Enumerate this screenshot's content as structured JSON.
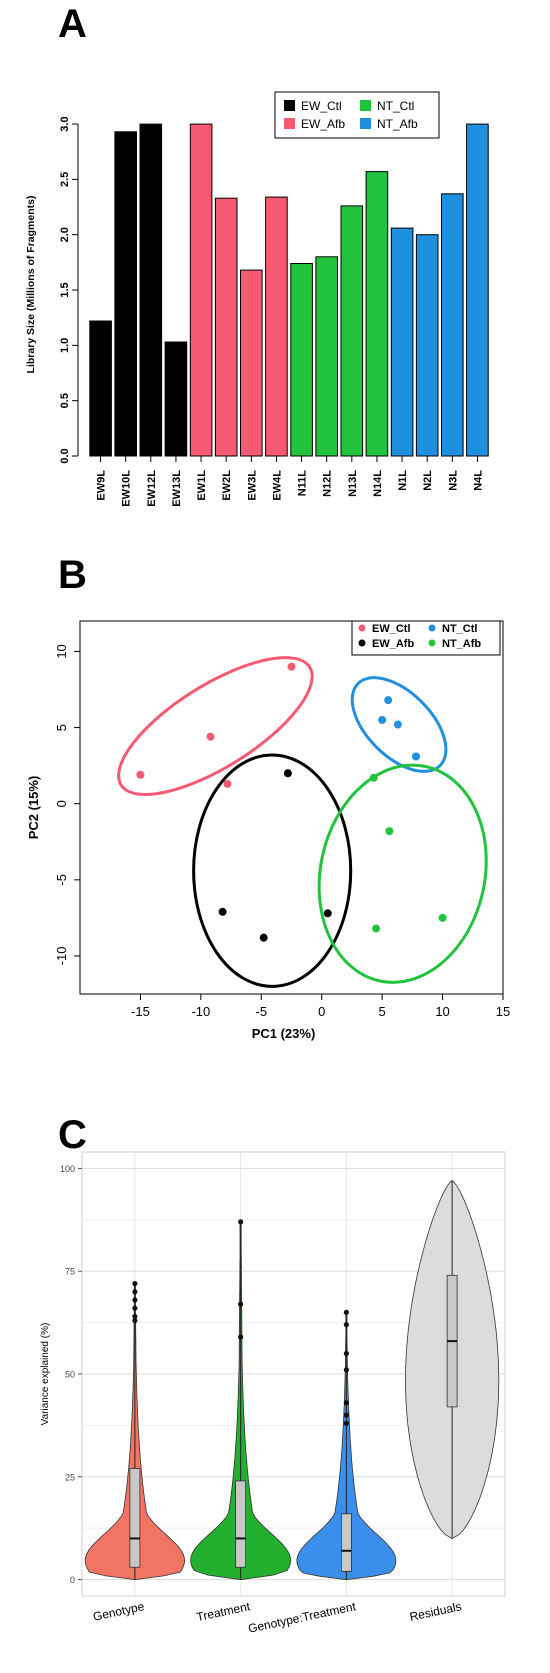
{
  "panels": {
    "a": "A",
    "b": "B",
    "c": "C"
  },
  "chart_data": [
    {
      "type": "bar",
      "ylabel": "Library Size (Millions of Fragments)",
      "ylim": [
        0,
        3.1
      ],
      "yticks": [
        "0.0",
        "0.5",
        "1.0",
        "1.5",
        "2.0",
        "2.5",
        "3.0"
      ],
      "categories": [
        "EW9L",
        "EW10L",
        "EW12L",
        "EW13L",
        "EW1L",
        "EW2L",
        "EW3L",
        "EW4L",
        "N11L",
        "N12L",
        "N13L",
        "N14L",
        "N1L",
        "N2L",
        "N3L",
        "N4L"
      ],
      "values": [
        1.22,
        2.93,
        3.0,
        1.03,
        3.0,
        2.33,
        1.68,
        2.34,
        1.74,
        1.8,
        2.26,
        2.57,
        2.06,
        2.0,
        2.37,
        3.0
      ],
      "groups": [
        "EW_Ctl",
        "EW_Ctl",
        "EW_Ctl",
        "EW_Ctl",
        "EW_Afb",
        "EW_Afb",
        "EW_Afb",
        "EW_Afb",
        "NT_Ctl",
        "NT_Ctl",
        "NT_Ctl",
        "NT_Ctl",
        "NT_Afb",
        "NT_Afb",
        "NT_Afb",
        "NT_Afb"
      ],
      "legend": [
        {
          "name": "EW_Ctl",
          "color": "#000000"
        },
        {
          "name": "NT_Ctl",
          "color": "#22c33c"
        },
        {
          "name": "EW_Afb",
          "color": "#f55a72"
        },
        {
          "name": "NT_Afb",
          "color": "#1f8fe0"
        }
      ],
      "legend_position": "top-right"
    },
    {
      "type": "scatter",
      "xlabel": "PC1 (23%)",
      "ylabel": "PC2 (15%)",
      "xlim": [
        -20,
        15
      ],
      "ylim": [
        -12.5,
        12
      ],
      "xticks": [
        "-15",
        "-10",
        "-5",
        "0",
        "5",
        "10",
        "15"
      ],
      "yticks": [
        "-10",
        "-5",
        "0",
        "5",
        "10"
      ],
      "legend_position": "top-right",
      "series": [
        {
          "name": "EW_Ctl",
          "color": "#f55a72",
          "points": [
            [
              -15,
              1.9
            ],
            [
              -9.2,
              4.4
            ],
            [
              -7.8,
              1.3
            ],
            [
              -2.5,
              9.0
            ]
          ],
          "ellipse": {
            "cx": -8.8,
            "cy": 5.1,
            "rx": 9.2,
            "ry": 2.7,
            "angle_deg": 32
          }
        },
        {
          "name": "EW_Afb",
          "color": "#000000",
          "points": [
            [
              -2.8,
              2.0
            ],
            [
              -8.2,
              -7.1
            ],
            [
              -4.8,
              -8.8
            ],
            [
              0.5,
              -7.2
            ]
          ],
          "ellipse": {
            "cx": -4.1,
            "cy": -4.4,
            "rx": 6.5,
            "ry": 7.6,
            "angle_deg": 0
          }
        },
        {
          "name": "NT_Ctl",
          "color": "#1f8fe0",
          "points": [
            [
              5.5,
              6.8
            ],
            [
              5.0,
              5.5
            ],
            [
              6.3,
              5.2
            ],
            [
              7.8,
              3.1
            ]
          ],
          "ellipse": {
            "cx": 6.4,
            "cy": 5.2,
            "rx": 4.8,
            "ry": 2.1,
            "angle_deg": -45
          }
        },
        {
          "name": "NT_Afb",
          "color": "#22c33c",
          "points": [
            [
              4.3,
              1.7
            ],
            [
              5.6,
              -1.8
            ],
            [
              4.5,
              -8.2
            ],
            [
              10.0,
              -7.5
            ]
          ],
          "ellipse": {
            "cx": 6.7,
            "cy": -4.6,
            "rx": 6.8,
            "ry": 7.2,
            "angle_deg": -12
          }
        }
      ]
    },
    {
      "type": "violin",
      "ylabel": "Variance explained (%)",
      "ylim": [
        0,
        100
      ],
      "yticks": [
        "0",
        "25",
        "50",
        "75",
        "100"
      ],
      "categories": [
        "Genotype",
        "Treatment",
        "Genotype:Treatment",
        "Residuals"
      ],
      "colors": [
        "#f27463",
        "#22b02e",
        "#3b8fec",
        "#dcdcdc"
      ],
      "violin_max": [
        72,
        87,
        65,
        97
      ],
      "violin_min": [
        0,
        0,
        0,
        10
      ],
      "boxes": [
        {
          "q1": 3,
          "median": 10,
          "q3": 27
        },
        {
          "q1": 3,
          "median": 10,
          "q3": 24
        },
        {
          "q1": 2,
          "median": 7,
          "q3": 16
        },
        {
          "q1": 42,
          "median": 58,
          "q3": 74
        }
      ],
      "outliers": [
        [
          63,
          64,
          66,
          68,
          70,
          72
        ],
        [
          59,
          67,
          87
        ],
        [
          38,
          40,
          43,
          51,
          55,
          62,
          65
        ],
        []
      ]
    }
  ]
}
